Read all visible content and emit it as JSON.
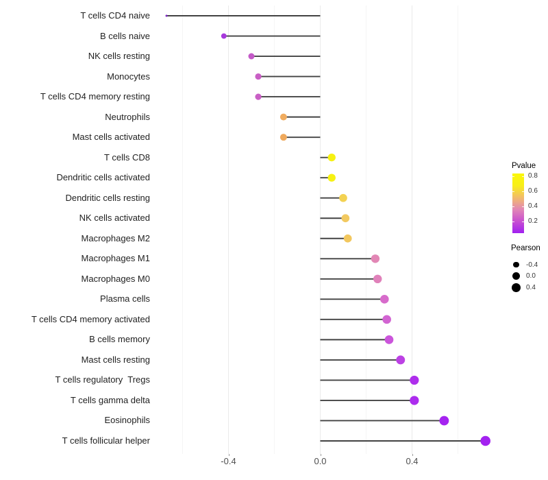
{
  "chart_data": {
    "type": "scatter",
    "variant": "lollipop",
    "title": "",
    "xlabel": "",
    "ylabel": "",
    "x_axis": {
      "tick_labels": [
        "-0.4",
        "0.0",
        "0.4"
      ],
      "tick_values": [
        -0.4,
        0.0,
        0.4
      ],
      "minor_gridlines": [
        -0.6,
        -0.2,
        0.2,
        0.6
      ],
      "range": [
        -0.705,
        0.79
      ],
      "grid": "on"
    },
    "points": [
      {
        "label": "T cells CD4 naive",
        "pearson": -0.67,
        "pvalue_approx": 0.02,
        "color": "#7a24c0"
      },
      {
        "label": "B cells naive",
        "pearson": -0.42,
        "pvalue_approx": 0.1,
        "color": "#a739dc"
      },
      {
        "label": "NK cells resting",
        "pearson": -0.3,
        "pvalue_approx": 0.25,
        "color": "#c45ac8"
      },
      {
        "label": "Monocytes",
        "pearson": -0.27,
        "pvalue_approx": 0.28,
        "color": "#c95fc5"
      },
      {
        "label": "T cells CD4 memory resting",
        "pearson": -0.27,
        "pvalue_approx": 0.28,
        "color": "#c95fc5"
      },
      {
        "label": "Neutrophils",
        "pearson": -0.16,
        "pvalue_approx": 0.55,
        "color": "#f0ac60"
      },
      {
        "label": "Mast cells activated",
        "pearson": -0.16,
        "pvalue_approx": 0.55,
        "color": "#efa95c"
      },
      {
        "label": "T cells CD8",
        "pearson": 0.05,
        "pvalue_approx": 0.8,
        "color": "#f6f112"
      },
      {
        "label": "Dendritic cells activated",
        "pearson": 0.05,
        "pvalue_approx": 0.8,
        "color": "#f6f112"
      },
      {
        "label": "Dendritic cells resting",
        "pearson": 0.1,
        "pvalue_approx": 0.65,
        "color": "#f3d252"
      },
      {
        "label": "NK cells activated",
        "pearson": 0.11,
        "pvalue_approx": 0.62,
        "color": "#f2c960"
      },
      {
        "label": "Macrophages M2",
        "pearson": 0.12,
        "pvalue_approx": 0.61,
        "color": "#f2c75e"
      },
      {
        "label": "Macrophages M1",
        "pearson": 0.24,
        "pvalue_approx": 0.45,
        "color": "#e287b5"
      },
      {
        "label": "Macrophages M0",
        "pearson": 0.25,
        "pvalue_approx": 0.43,
        "color": "#e081ba"
      },
      {
        "label": "Plasma cells",
        "pearson": 0.28,
        "pvalue_approx": 0.33,
        "color": "#d76bcb"
      },
      {
        "label": "T cells CD4 memory activated",
        "pearson": 0.29,
        "pvalue_approx": 0.3,
        "color": "#d264d2"
      },
      {
        "label": "B cells memory",
        "pearson": 0.3,
        "pvalue_approx": 0.26,
        "color": "#cb55db"
      },
      {
        "label": "Mast cells resting",
        "pearson": 0.35,
        "pvalue_approx": 0.17,
        "color": "#bc41e4"
      },
      {
        "label": "T cells regulatory  Tregs",
        "pearson": 0.41,
        "pvalue_approx": 0.11,
        "color": "#ae2eec"
      },
      {
        "label": "T cells gamma delta",
        "pearson": 0.41,
        "pvalue_approx": 0.1,
        "color": "#ac2cee"
      },
      {
        "label": "Eosinophils",
        "pearson": 0.54,
        "pvalue_approx": 0.05,
        "color": "#a524f0"
      },
      {
        "label": "T cells follicular helper",
        "pearson": 0.72,
        "pvalue_approx": 0.02,
        "color": "#a322f0"
      }
    ],
    "segment_color": "#424242",
    "color_legend": {
      "title": "Pvalue",
      "tick_labels": [
        "0.8",
        "0.6",
        "0.4",
        "0.2"
      ],
      "tick_values": [
        0.8,
        0.6,
        0.4,
        0.2
      ],
      "bar_value_range": [
        0.04,
        0.84
      ],
      "gradient_stops_bottom_to_top": [
        "#a020f0",
        "#c84fd0",
        "#e287b5",
        "#f2bc69",
        "#f8ef18",
        "#faf70a"
      ]
    },
    "size_legend": {
      "title": "Pearson",
      "items": [
        {
          "label": "-0.4",
          "value": -0.4
        },
        {
          "label": "0.0",
          "value": 0.0
        },
        {
          "label": "0.4",
          "value": 0.4
        }
      ],
      "dot_color": "#000000"
    }
  },
  "colors": {
    "grid_major": "#eaeaea",
    "grid_minor": "#f5f5f5",
    "axis_text": "#4d4d4d",
    "label_text": "#1f1f1f",
    "background": "#ffffff"
  }
}
